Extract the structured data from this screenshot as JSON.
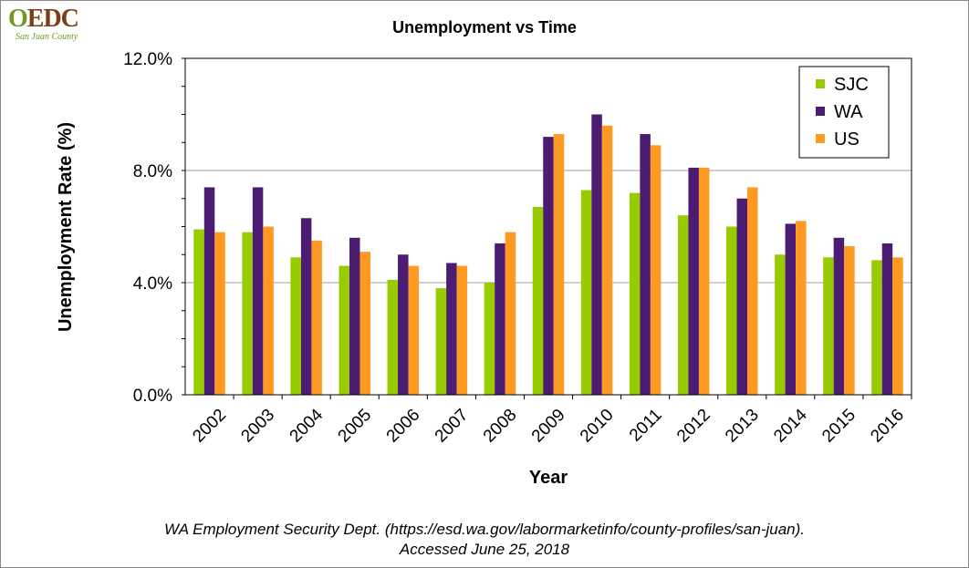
{
  "logo": {
    "mark_o": "O",
    "mark_rest": "EDC",
    "subtitle": "San Juan County"
  },
  "source": {
    "line1": "WA Employment Security Dept. (https://esd.wa.gov/labormarketinfo/county-profiles/san-juan).",
    "line2": "Accessed June 25, 2018"
  },
  "chart_data": {
    "type": "bar",
    "title": "Unemployment vs Time",
    "xlabel": "Year",
    "ylabel": "Unemployment Rate (%)",
    "ylim": [
      0,
      12
    ],
    "yticks": [
      0,
      4,
      8,
      12
    ],
    "ytick_labels": [
      "0.0%",
      "4.0%",
      "8.0%",
      "12.0%"
    ],
    "grid": "horizontal",
    "legend_position": "top-right",
    "categories": [
      "2002",
      "2003",
      "2004",
      "2005",
      "2006",
      "2007",
      "2008",
      "2009",
      "2010",
      "2011",
      "2012",
      "2013",
      "2014",
      "2015",
      "2016"
    ],
    "series": [
      {
        "name": "SJC",
        "color": "#99cc00",
        "values": [
          5.9,
          5.8,
          4.9,
          4.6,
          4.1,
          3.8,
          4.0,
          6.7,
          7.3,
          7.2,
          6.4,
          6.0,
          5.0,
          4.9,
          4.8
        ]
      },
      {
        "name": "WA",
        "color": "#4b1c72",
        "values": [
          7.4,
          7.4,
          6.3,
          5.6,
          5.0,
          4.7,
          5.4,
          9.2,
          10.0,
          9.3,
          8.1,
          7.0,
          6.1,
          5.6,
          5.4
        ]
      },
      {
        "name": "US",
        "color": "#ff9922",
        "values": [
          5.8,
          6.0,
          5.5,
          5.1,
          4.6,
          4.6,
          5.8,
          9.3,
          9.6,
          8.9,
          8.1,
          7.4,
          6.2,
          5.3,
          4.9
        ]
      }
    ]
  }
}
